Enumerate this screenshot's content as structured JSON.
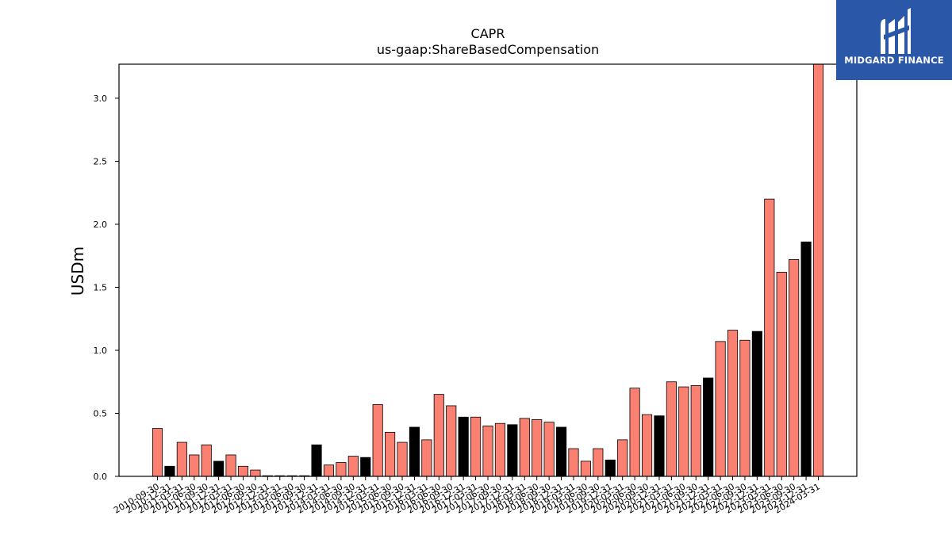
{
  "brand": {
    "name": "MIDGARD FINANCE",
    "bg_color": "#2b57a8",
    "icon": "midgard-logo-icon"
  },
  "chart_data": {
    "type": "bar",
    "title": "CAPR",
    "subtitle": "us-gaap:ShareBasedCompensation",
    "xlabel": "",
    "ylabel": "USDm",
    "ylim": [
      0,
      3.27
    ],
    "yticks": [
      "0.0",
      "0.5",
      "1.0",
      "1.5",
      "2.0",
      "2.5",
      "3.0"
    ],
    "grid": false,
    "colors": {
      "quarterly": "#fa8072",
      "fiscal_year_end": "#000000"
    },
    "categories": [
      "2010-09-30",
      "2010-12-31",
      "2011-03-31",
      "2011-06-30",
      "2011-09-30",
      "2011-12-31",
      "2012-03-31",
      "2012-06-30",
      "2012-09-30",
      "2012-12-31",
      "2013-03-31",
      "2013-06-30",
      "2013-09-30",
      "2013-12-31",
      "2014-03-31",
      "2014-06-30",
      "2014-09-30",
      "2014-12-31",
      "2015-03-31",
      "2015-06-30",
      "2015-09-30",
      "2015-12-31",
      "2016-03-31",
      "2016-06-30",
      "2016-09-30",
      "2016-12-31",
      "2017-03-31",
      "2017-06-30",
      "2017-09-30",
      "2017-12-31",
      "2018-03-31",
      "2018-06-30",
      "2018-09-30",
      "2018-12-31",
      "2019-03-31",
      "2019-06-30",
      "2019-09-30",
      "2019-12-31",
      "2020-03-31",
      "2020-06-30",
      "2020-09-30",
      "2020-12-31",
      "2021-03-31",
      "2021-06-30",
      "2021-09-30",
      "2021-12-31",
      "2022-03-31",
      "2022-06-30",
      "2022-09-30",
      "2022-12-31",
      "2023-03-31",
      "2023-06-30",
      "2023-09-30",
      "2023-12-31",
      "2024-03-31"
    ],
    "values": [
      0.38,
      0.08,
      0.27,
      0.17,
      0.25,
      0.12,
      0.17,
      0.08,
      0.05,
      0.005,
      0.005,
      0.005,
      0.005,
      0.25,
      0.09,
      0.11,
      0.16,
      0.15,
      0.57,
      0.35,
      0.27,
      0.39,
      0.29,
      0.65,
      0.56,
      0.47,
      0.47,
      0.4,
      0.42,
      0.41,
      0.46,
      0.45,
      0.43,
      0.39,
      0.22,
      0.12,
      0.22,
      0.13,
      0.29,
      0.7,
      0.49,
      0.48,
      0.75,
      0.71,
      0.72,
      0.78,
      1.07,
      1.16,
      1.08,
      1.15,
      2.2,
      1.62,
      1.72,
      1.86,
      3.27
    ],
    "highlight_indices": [
      1,
      5,
      13,
      17,
      21,
      25,
      29,
      33,
      37,
      41,
      45,
      49,
      53
    ]
  }
}
